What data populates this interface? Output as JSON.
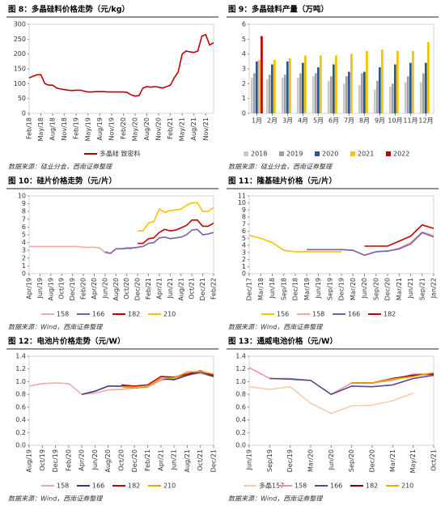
{
  "chart_data": [
    {
      "type": "line",
      "title": "图 8：多晶硅料价格走势（元/kg）",
      "source": "数据来源：硅业分会，西南证券整理",
      "categories": [
        "Feb/18",
        null,
        null,
        "May/18",
        null,
        null,
        "Aug/18",
        null,
        null,
        "Nov/18",
        null,
        null,
        "Feb/19",
        null,
        null,
        "May/19",
        null,
        null,
        "Aug/19",
        null,
        null,
        "Nov/19",
        null,
        null,
        "Feb/20",
        null,
        null,
        "May/20",
        null,
        null,
        "Aug/20",
        null,
        null,
        "Nov/20",
        null,
        null,
        "Feb/21",
        null,
        null,
        "May/21",
        null,
        null,
        "Aug/21",
        null,
        null,
        "Nov/21",
        null,
        null
      ],
      "series": [
        {
          "name": "多晶硅 致密料",
          "color": "#c00000",
          "values": [
            120,
            125,
            130,
            130,
            100,
            95,
            95,
            85,
            82,
            80,
            78,
            77,
            78,
            78,
            75,
            72,
            72,
            73,
            73,
            73,
            72,
            72,
            72,
            72,
            72,
            70,
            62,
            58,
            60,
            85,
            90,
            88,
            90,
            88,
            85,
            90,
            95,
            120,
            140,
            200,
            210,
            207,
            205,
            210,
            260,
            265,
            230,
            238
          ]
        }
      ],
      "ylim": [
        0,
        300
      ],
      "yticks": [
        0,
        50,
        100,
        150,
        200,
        250,
        300
      ],
      "legend": "bottom"
    },
    {
      "type": "bar",
      "title": "图 9：多晶硅料产量（万吨）",
      "source": "数据来源：硅业分会，西南证券整理",
      "categories": [
        "1月",
        "2月",
        "3月",
        "4月",
        "5月",
        "6月",
        "7月",
        "8月",
        "9月",
        "10月",
        "11月",
        "12月"
      ],
      "series": [
        {
          "name": "2018",
          "color": "#c9c9c9",
          "values": [
            2.4,
            2.3,
            2.4,
            2.4,
            2.5,
            2.2,
            2.0,
            1.9,
            1.6,
            1.8,
            2.1,
            2.1
          ]
        },
        {
          "name": "2019",
          "color": "#a0a0a0",
          "values": [
            2.7,
            2.6,
            2.6,
            2.7,
            2.7,
            2.5,
            2.5,
            2.7,
            2.2,
            2.0,
            2.5,
            2.7
          ]
        },
        {
          "name": "2020",
          "color": "#2e5597",
          "values": [
            3.5,
            3.3,
            3.5,
            3.4,
            3.1,
            3.3,
            2.8,
            2.8,
            3.1,
            3.3,
            3.4,
            3.4
          ]
        },
        {
          "name": "2021",
          "color": "#f5c400",
          "values": [
            3.6,
            3.6,
            3.7,
            3.9,
            3.9,
            3.9,
            4.0,
            4.2,
            4.3,
            4.2,
            4.2,
            4.8
          ]
        },
        {
          "name": "2022",
          "color": "#c00000",
          "values": [
            5.2,
            null,
            null,
            null,
            null,
            null,
            null,
            null,
            null,
            null,
            null,
            null
          ]
        }
      ],
      "ylim": [
        0,
        6
      ],
      "yticks": [
        0,
        1,
        2,
        3,
        4,
        5,
        6
      ],
      "legend": "bottom"
    },
    {
      "type": "line",
      "title": "图 10：硅片价格走势（元/片）",
      "source": "数据来源：Wind，西南证券整理",
      "categories": [
        "Apr/19",
        null,
        "Jun/19",
        null,
        "Aug/19",
        null,
        "Oct/19",
        null,
        "Dec/19",
        null,
        "Feb/20",
        null,
        "Apr/20",
        null,
        "Jun/20",
        null,
        "Aug/20",
        null,
        "Oct/20",
        null,
        "Dec/20",
        null,
        "Feb/21",
        null,
        "Apr/21",
        null,
        "Jun/21",
        null,
        "Aug/21",
        null,
        "Oct/21",
        null,
        "Dec/21",
        null,
        "Feb/22"
      ],
      "series": [
        {
          "name": "158",
          "color": "#f4a7a7",
          "values": [
            3.5,
            3.5,
            3.5,
            3.5,
            3.5,
            3.5,
            3.5,
            3.5,
            3.5,
            3.5,
            3.4,
            3.4,
            3.4,
            3.3,
            2.7,
            2.6,
            3.2,
            3.2,
            3.2,
            3.2,
            null,
            null,
            null,
            null,
            null,
            null,
            null,
            null,
            null,
            null,
            null,
            null,
            null,
            null,
            null
          ]
        },
        {
          "name": "166",
          "color": "#7b5ea7",
          "values": [
            null,
            null,
            null,
            null,
            null,
            null,
            null,
            null,
            null,
            null,
            null,
            null,
            null,
            null,
            2.8,
            2.6,
            3.2,
            3.2,
            3.3,
            3.3,
            3.4,
            3.5,
            3.9,
            4.0,
            4.6,
            4.7,
            4.5,
            4.6,
            4.7,
            5.0,
            5.6,
            5.7,
            5.0,
            5.1,
            5.3
          ]
        },
        {
          "name": "182",
          "color": "#c00000",
          "values": [
            null,
            null,
            null,
            null,
            null,
            null,
            null,
            null,
            null,
            null,
            null,
            null,
            null,
            null,
            null,
            null,
            null,
            null,
            null,
            null,
            3.9,
            3.9,
            4.5,
            4.6,
            5.3,
            5.7,
            5.5,
            5.6,
            5.9,
            6.2,
            6.9,
            6.9,
            6.1,
            6.1,
            6.5
          ]
        },
        {
          "name": "210",
          "color": "#f5c400",
          "values": [
            null,
            null,
            null,
            null,
            null,
            null,
            null,
            null,
            null,
            null,
            null,
            null,
            null,
            null,
            null,
            null,
            null,
            null,
            null,
            null,
            5.5,
            5.5,
            6.5,
            6.7,
            8.3,
            7.9,
            8.1,
            8.2,
            8.3,
            8.8,
            9.1,
            9.1,
            8.0,
            8.0,
            8.5
          ]
        }
      ],
      "ylim": [
        0,
        10
      ],
      "yticks": [
        0,
        1,
        2,
        3,
        4,
        5,
        6,
        7,
        8,
        9,
        10
      ],
      "legend": "bottom"
    },
    {
      "type": "line",
      "title": "图 11：隆基硅片价格（元/片）",
      "source": "数据来源：Wind，西南证券整理",
      "categories": [
        "Dec/17",
        "Mar/18",
        "Jun/18",
        "Sep/18",
        "Dec/18",
        "Mar/19",
        "Jun/19",
        "Sep/19",
        "Dec/19",
        "Mar/20",
        "Jun/20",
        "Sep/20",
        "Dec/20",
        "Mar/21",
        "Jun/21",
        "Sep/21",
        "Jan/22"
      ],
      "series": [
        {
          "name": "156",
          "color": "#f5c400",
          "values": [
            5.4,
            5.0,
            4.4,
            3.3,
            3.1,
            3.1,
            3.1,
            3.1,
            3.1,
            null,
            null,
            null,
            null,
            null,
            null,
            null,
            null
          ]
        },
        {
          "name": "158",
          "color": "#f4a7a7",
          "values": [
            null,
            null,
            null,
            null,
            null,
            3.4,
            3.4,
            3.4,
            3.4,
            3.3,
            2.6,
            3.1,
            3.2,
            3.6,
            4.4,
            5.9,
            5.4
          ]
        },
        {
          "name": "166",
          "color": "#7b5ea7",
          "values": [
            null,
            null,
            null,
            null,
            null,
            3.4,
            3.4,
            3.4,
            3.4,
            3.3,
            2.6,
            3.1,
            3.2,
            3.5,
            4.2,
            5.8,
            5.2
          ]
        },
        {
          "name": "182",
          "color": "#c00000",
          "values": [
            null,
            null,
            null,
            null,
            null,
            null,
            null,
            null,
            null,
            null,
            3.9,
            3.9,
            3.9,
            4.6,
            5.3,
            6.9,
            6.4
          ]
        }
      ],
      "ylim": [
        0,
        11
      ],
      "yticks": [
        0,
        1,
        2,
        3,
        4,
        5,
        6,
        7,
        8,
        9,
        10,
        11
      ],
      "legend": "bottom"
    },
    {
      "type": "line",
      "title": "图 12：电池片价格走势（元/W）",
      "source": "数据来源：Wind，西南证券整理",
      "categories": [
        "Aug/19",
        "Oct/19",
        "Dec/19",
        "Feb/20",
        "Apr/20",
        "Jun/20",
        "Aug/20",
        "Oct/20",
        "Dec/20",
        "Feb/21",
        "Apr/21",
        "Jun/21",
        "Aug/21",
        "Oct/21",
        "Dec/21"
      ],
      "series": [
        {
          "name": "158",
          "color": "#f4a7a7",
          "values": [
            0.93,
            0.97,
            0.98,
            0.97,
            0.8,
            0.82,
            0.87,
            0.88,
            0.9,
            0.92,
            1.02,
            1.05,
            1.12,
            1.13,
            1.08
          ]
        },
        {
          "name": "166",
          "color": "#3a3a7a",
          "values": [
            null,
            null,
            null,
            null,
            0.8,
            0.85,
            0.93,
            0.93,
            0.9,
            0.92,
            1.05,
            1.03,
            1.1,
            1.15,
            1.08
          ]
        },
        {
          "name": "182",
          "color": "#c00000",
          "values": [
            null,
            null,
            null,
            null,
            null,
            null,
            null,
            0.95,
            0.93,
            0.95,
            1.08,
            1.07,
            1.12,
            1.17,
            1.1
          ]
        },
        {
          "name": "210",
          "color": "#f0a000",
          "values": [
            null,
            null,
            null,
            null,
            null,
            null,
            null,
            0.92,
            0.9,
            0.92,
            1.05,
            1.06,
            1.15,
            1.16,
            1.12
          ]
        }
      ],
      "ylim": [
        0,
        1.4
      ],
      "yticks": [
        {
          "value": 0,
          "label": "0.0"
        },
        0.2,
        0.4,
        0.6,
        0.8,
        {
          "value": 1,
          "label": "1.0"
        },
        1.2,
        1.4
      ],
      "legend": "bottom"
    },
    {
      "type": "line",
      "title": "图 13：通威电池价格（元/W）",
      "source": "数据来源：Wind，西南证券整理",
      "categories": [
        "Jun/19",
        "Sep/19",
        "Dec/19",
        "Mar/20",
        "Jun/20",
        "Sep/20",
        "Dec/20",
        "Mar/21",
        "May/21",
        "Oct/21"
      ],
      "series": [
        {
          "name": "多晶157",
          "color": "#f8cbad",
          "values": [
            0.92,
            0.88,
            0.92,
            0.66,
            0.5,
            0.62,
            0.63,
            0.7,
            0.82,
            null
          ]
        },
        {
          "name": "158",
          "color": "#e89a9a",
          "values": [
            1.22,
            1.05,
            1.05,
            1.02,
            0.8,
            0.98,
            0.98,
            1.02,
            1.12,
            1.12
          ]
        },
        {
          "name": "166",
          "color": "#5a4a8a",
          "values": [
            null,
            1.05,
            1.04,
            1.02,
            0.8,
            0.93,
            0.92,
            0.95,
            1.05,
            1.1
          ]
        },
        {
          "name": "182",
          "color": "#8b0000",
          "values": [
            null,
            null,
            null,
            null,
            null,
            0.98,
            0.98,
            1.05,
            1.1,
            1.12
          ]
        },
        {
          "name": "210",
          "color": "#f0a000",
          "values": [
            null,
            null,
            null,
            null,
            null,
            0.98,
            0.98,
            1.04,
            1.08,
            1.14
          ]
        }
      ],
      "ylim": [
        0,
        1.4
      ],
      "yticks": [
        {
          "value": 0,
          "label": "0.0"
        },
        0.2,
        0.4,
        0.6,
        0.8,
        {
          "value": 1,
          "label": "1.0"
        },
        1.2,
        1.4
      ],
      "legend": "bottom"
    }
  ]
}
